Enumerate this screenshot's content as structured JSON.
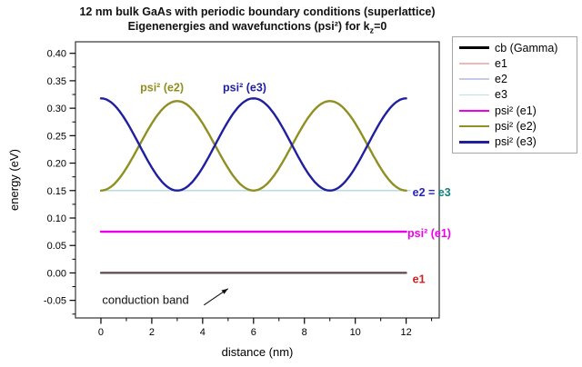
{
  "title": {
    "line1": "12 nm bulk GaAs with periodic boundary conditions (superlattice)",
    "line2_pre": "Eigenenergies and wavefunctions (psi²) for k",
    "line2_sub": "z",
    "line2_post": "=0"
  },
  "axes": {
    "x": {
      "label": "distance (nm)",
      "tick_labels": [
        "0",
        "2",
        "4",
        "6",
        "8",
        "10",
        "12"
      ],
      "tick_values": [
        0,
        2,
        4,
        6,
        8,
        10,
        12
      ],
      "minor_tick_values": [
        1,
        3,
        5,
        7,
        9,
        11,
        13
      ],
      "range_nm": [
        -1,
        13.3
      ]
    },
    "y": {
      "label": "energy (eV)",
      "tick_labels": [
        "0.40",
        "0.35",
        "0.30",
        "0.25",
        "0.20",
        "0.15",
        "0.10",
        "0.05",
        "0.00",
        "-0.05"
      ],
      "tick_values": [
        0.4,
        0.35,
        0.3,
        0.25,
        0.2,
        0.15,
        0.1,
        0.05,
        0.0,
        -0.05
      ],
      "minor_tick_values": [
        0.375,
        0.325,
        0.275,
        0.225,
        0.175,
        0.125,
        0.075,
        0.025,
        -0.025,
        -0.075
      ],
      "range_ev": [
        -0.082,
        0.421
      ]
    }
  },
  "legend": {
    "border_color": "#a6a6a6",
    "items": [
      {
        "label": "cb (Gamma)",
        "color": "#000000",
        "thickness": 2.5
      },
      {
        "label": "e1",
        "color": "#f0b8b8",
        "thickness": 1.5
      },
      {
        "label": "e2",
        "color": "#c6cae6",
        "thickness": 1.5
      },
      {
        "label": "e3",
        "color": "#bfe0e0",
        "thickness": 1.5
      },
      {
        "label": "psi² (e1)",
        "color": "#ee00ee",
        "thickness": 2.5
      },
      {
        "label": "psi² (e2)",
        "color": "#8f8f22",
        "thickness": 2.5
      },
      {
        "label": "psi² (e3)",
        "color": "#1f1f9f",
        "thickness": 2.5
      }
    ]
  },
  "chart_data": {
    "type": "line",
    "title": "12 nm bulk GaAs with periodic boundary conditions (superlattice) — Eigenenergies and wavefunctions (psi²) for kz=0",
    "xlabel": "distance (nm)",
    "ylabel": "energy (eV)",
    "xlim": [
      -1,
      13.3
    ],
    "ylim": [
      -0.082,
      0.421
    ],
    "grid": false,
    "legend_position": "outside-top-right",
    "series": [
      {
        "name": "e2",
        "render": "flat",
        "y_ev": 0.15,
        "x_range": [
          0,
          12.15
        ],
        "color": "#c6cae6",
        "width": 1.3,
        "opacity": 1
      },
      {
        "name": "e3",
        "render": "flat",
        "y_ev": 0.15,
        "x_range": [
          0,
          12.15
        ],
        "color": "#b5dce0",
        "width": 1.3,
        "opacity": 1
      },
      {
        "name": "cb (Gamma)",
        "render": "flat",
        "y_ev": 0.0,
        "x_range": [
          0,
          12
        ],
        "color": "#000000",
        "width": 2.2,
        "opacity": 1
      },
      {
        "name": "e1",
        "render": "flat",
        "y_ev": 0.0,
        "x_range": [
          0,
          12
        ],
        "color": "#f0b8b8",
        "width": 2.2,
        "opacity": 0.42
      },
      {
        "name": "psi² (e1)",
        "render": "flat",
        "y_ev": 0.075,
        "x_range": [
          0,
          12
        ],
        "color": "#ee00ee",
        "width": 2.4,
        "opacity": 1
      },
      {
        "name": "psi² (e2)",
        "render": "sin2",
        "base_ev": 0.15,
        "amplitude_ev": 0.163,
        "period_nm": 6,
        "phase": "sin",
        "x_range": [
          0,
          12
        ],
        "color": "#8f8f22",
        "width": 2.4,
        "opacity": 1,
        "extrema": {
          "minimum_ev": 0.15,
          "maximum_ev": 0.313,
          "maxima_at_nm": [
            3,
            9
          ],
          "minima_at_nm": [
            0,
            6,
            12
          ]
        }
      },
      {
        "name": "psi² (e3)",
        "render": "sin2",
        "base_ev": 0.15,
        "amplitude_ev": 0.168,
        "period_nm": 6,
        "phase": "cos",
        "x_range": [
          0,
          12
        ],
        "color": "#1f1f9f",
        "width": 2.4,
        "opacity": 1,
        "extrema": {
          "minimum_ev": 0.15,
          "maximum_ev": 0.318,
          "maxima_at_nm": [
            0,
            6,
            12
          ],
          "minima_at_nm": [
            3,
            9
          ]
        }
      }
    ]
  },
  "annotations": [
    {
      "id": "psi2-e2-label",
      "parts": [
        {
          "text": "psi² (e2)",
          "color": "#8f8f22"
        }
      ],
      "x_nm": 2.4,
      "y_ev": 0.338,
      "anchor": "middle",
      "bold": true,
      "size": 12.5
    },
    {
      "id": "psi2-e3-label",
      "parts": [
        {
          "text": "psi² (e3)",
          "color": "#1f1f9f"
        }
      ],
      "x_nm": 5.65,
      "y_ev": 0.338,
      "anchor": "middle",
      "bold": true,
      "size": 12.5
    },
    {
      "id": "e2-e3-label",
      "parts": [
        {
          "text": "e2 = ",
          "color": "#2424bb"
        },
        {
          "text": "e3",
          "color": "#0e8080"
        }
      ],
      "x_nm": 12.25,
      "y_ev": 0.147,
      "anchor": "start",
      "bold": true,
      "size": 12.5
    },
    {
      "id": "psi2-e1-label",
      "parts": [
        {
          "text": "psi² (e1)",
          "color": "#ee00ee"
        }
      ],
      "x_nm": 12.05,
      "y_ev": 0.073,
      "anchor": "start",
      "bold": true,
      "size": 12.5
    },
    {
      "id": "e1-label",
      "parts": [
        {
          "text": "e1",
          "color": "#cc2222"
        }
      ],
      "x_nm": 12.25,
      "y_ev": -0.011,
      "anchor": "start",
      "bold": true,
      "size": 12.5
    },
    {
      "id": "conduction-band-label",
      "parts": [
        {
          "text": "conduction band",
          "color": "#111111"
        }
      ],
      "x_nm": 0.05,
      "y_ev": -0.049,
      "anchor": "start",
      "bold": false,
      "size": 13
    },
    {
      "id": "conduction-band-arrow",
      "type": "arrow",
      "from_nm_ev": [
        4.05,
        -0.0585
      ],
      "to_nm_ev": [
        5.0,
        -0.0285
      ],
      "color": "#111111"
    }
  ]
}
